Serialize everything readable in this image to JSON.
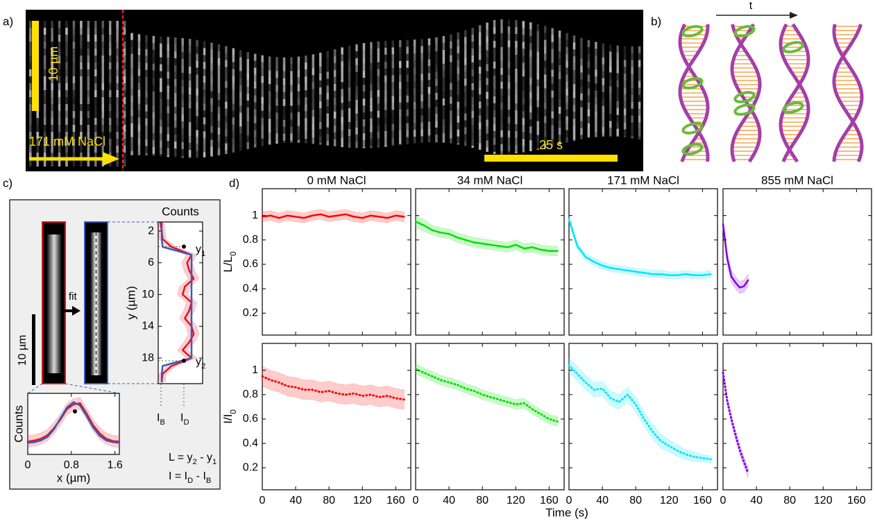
{
  "panel_labels": [
    "a)",
    "b)",
    "c)",
    "d)"
  ],
  "panel_a": {
    "scale_length": "10 µm",
    "condition": "171 mM NaCl",
    "scale_time": "25 s"
  },
  "panel_b": {
    "time_arrow": "t"
  },
  "panel_c": {
    "fit": "fit",
    "scale_length": "10 µm",
    "y1": [
      "y",
      "1"
    ],
    "y2": [
      "y",
      "2"
    ],
    "i_b": [
      "I",
      "B"
    ],
    "i_d": [
      "I",
      "D"
    ],
    "eq_l": [
      "L = y",
      "2",
      " - y",
      "1"
    ],
    "eq_i": [
      "I = I",
      "D",
      " - I",
      "B"
    ]
  },
  "panel_d": {
    "xlabel": "Time (s)"
  },
  "chart_data": [
    {
      "type": "line",
      "title": "0 mM NaCl",
      "ylabel": [
        "L/L",
        "0"
      ],
      "x": [
        0,
        10,
        20,
        30,
        40,
        50,
        60,
        70,
        80,
        90,
        100,
        110,
        120,
        130,
        140,
        150,
        160,
        170
      ],
      "xlim": [
        0,
        178
      ],
      "ylim": [
        0.02,
        1.22
      ],
      "xticks": [
        0,
        40,
        80,
        120,
        160
      ],
      "yticks": [
        0.2,
        0.4,
        0.6,
        0.8,
        1
      ],
      "xtick_labels": false,
      "ytick_labels": true,
      "series": [
        {
          "color": "#ff0000",
          "style": "solid",
          "values": [
            0.99,
            1.0,
            0.98,
            1.0,
            0.99,
            0.98,
            1.0,
            1.01,
            0.99,
            1.0,
            1.01,
            0.99,
            0.98,
            1.0,
            0.99,
            0.98,
            1.0,
            0.99
          ],
          "errors": [
            0.04,
            0.04,
            0.04,
            0.04,
            0.04,
            0.04,
            0.04,
            0.04,
            0.04,
            0.04,
            0.04,
            0.04,
            0.04,
            0.04,
            0.04,
            0.04,
            0.04,
            0.04
          ]
        }
      ]
    },
    {
      "type": "line",
      "title": "34 mM NaCl",
      "x": [
        0,
        10,
        20,
        30,
        40,
        50,
        60,
        70,
        80,
        90,
        100,
        110,
        120,
        130,
        140,
        150,
        160,
        170
      ],
      "xlim": [
        0,
        178
      ],
      "ylim": [
        0.02,
        1.22
      ],
      "xticks": [
        0,
        40,
        80,
        120,
        160
      ],
      "yticks": [
        0.2,
        0.4,
        0.6,
        0.8,
        1
      ],
      "xtick_labels": false,
      "ytick_labels": false,
      "series": [
        {
          "color": "#00e000",
          "style": "solid",
          "values": [
            0.95,
            0.92,
            0.88,
            0.86,
            0.85,
            0.82,
            0.8,
            0.78,
            0.77,
            0.76,
            0.75,
            0.74,
            0.76,
            0.73,
            0.74,
            0.72,
            0.71,
            0.71
          ],
          "errors": [
            0.05,
            0.05,
            0.04,
            0.04,
            0.04,
            0.04,
            0.04,
            0.04,
            0.04,
            0.04,
            0.04,
            0.04,
            0.04,
            0.04,
            0.04,
            0.04,
            0.04,
            0.04
          ]
        }
      ]
    },
    {
      "type": "line",
      "title": "171 mM NaCl",
      "x": [
        0,
        10,
        20,
        30,
        40,
        50,
        60,
        70,
        80,
        90,
        100,
        110,
        120,
        130,
        140,
        150,
        160,
        170
      ],
      "xlim": [
        0,
        178
      ],
      "ylim": [
        0.02,
        1.22
      ],
      "xticks": [
        0,
        40,
        80,
        120,
        160
      ],
      "yticks": [
        0.2,
        0.4,
        0.6,
        0.8,
        1
      ],
      "xtick_labels": false,
      "ytick_labels": false,
      "series": [
        {
          "color": "#00e5ff",
          "style": "solid",
          "values": [
            0.97,
            0.75,
            0.66,
            0.62,
            0.59,
            0.57,
            0.56,
            0.55,
            0.54,
            0.53,
            0.52,
            0.52,
            0.51,
            0.51,
            0.52,
            0.51,
            0.51,
            0.52
          ],
          "errors": [
            0.03,
            0.03,
            0.03,
            0.03,
            0.03,
            0.03,
            0.03,
            0.03,
            0.03,
            0.03,
            0.03,
            0.03,
            0.03,
            0.03,
            0.03,
            0.03,
            0.03,
            0.03
          ]
        }
      ]
    },
    {
      "type": "line",
      "title": "855 mM NaCl",
      "x": [
        0,
        5,
        10,
        15,
        20,
        25,
        30
      ],
      "xlim": [
        0,
        178
      ],
      "ylim": [
        0.02,
        1.22
      ],
      "xticks": [
        0,
        40,
        80,
        120,
        160
      ],
      "yticks": [
        0.2,
        0.4,
        0.6,
        0.8,
        1
      ],
      "xtick_labels": false,
      "ytick_labels": false,
      "series": [
        {
          "color": "#8000e0",
          "style": "solid",
          "values": [
            0.93,
            0.65,
            0.5,
            0.45,
            0.41,
            0.42,
            0.47
          ],
          "errors": [
            0.05,
            0.05,
            0.05,
            0.05,
            0.05,
            0.05,
            0.05
          ]
        }
      ]
    },
    {
      "type": "line",
      "ylabel": [
        "I/I",
        "0"
      ],
      "x": [
        0,
        10,
        20,
        30,
        40,
        50,
        60,
        70,
        80,
        90,
        100,
        110,
        120,
        130,
        140,
        150,
        160,
        170
      ],
      "xlim": [
        0,
        178
      ],
      "ylim": [
        0.02,
        1.22
      ],
      "xticks": [
        0,
        40,
        80,
        120,
        160
      ],
      "yticks": [
        0.2,
        0.4,
        0.6,
        0.8,
        1
      ],
      "xtick_labels": true,
      "ytick_labels": true,
      "series": [
        {
          "color": "#ff0000",
          "style": "dotted",
          "values": [
            0.95,
            0.92,
            0.9,
            0.87,
            0.86,
            0.84,
            0.84,
            0.82,
            0.83,
            0.81,
            0.8,
            0.81,
            0.79,
            0.8,
            0.78,
            0.79,
            0.77,
            0.76
          ],
          "errors": [
            0.08,
            0.08,
            0.08,
            0.08,
            0.08,
            0.08,
            0.08,
            0.08,
            0.08,
            0.08,
            0.08,
            0.08,
            0.08,
            0.08,
            0.08,
            0.08,
            0.08,
            0.08
          ]
        }
      ]
    },
    {
      "type": "line",
      "x": [
        0,
        10,
        20,
        30,
        40,
        50,
        60,
        70,
        80,
        90,
        100,
        110,
        120,
        130,
        140,
        150,
        160,
        170
      ],
      "xlim": [
        0,
        178
      ],
      "ylim": [
        0.02,
        1.22
      ],
      "xticks": [
        0,
        40,
        80,
        120,
        160
      ],
      "yticks": [
        0.2,
        0.4,
        0.6,
        0.8,
        1
      ],
      "xtick_labels": true,
      "ytick_labels": false,
      "series": [
        {
          "color": "#00e000",
          "style": "dotted",
          "values": [
            1.01,
            0.98,
            0.95,
            0.92,
            0.9,
            0.88,
            0.85,
            0.83,
            0.8,
            0.78,
            0.76,
            0.74,
            0.72,
            0.73,
            0.68,
            0.64,
            0.6,
            0.58
          ],
          "errors": [
            0.04,
            0.04,
            0.04,
            0.04,
            0.04,
            0.04,
            0.04,
            0.04,
            0.04,
            0.04,
            0.04,
            0.04,
            0.04,
            0.04,
            0.04,
            0.04,
            0.04,
            0.04
          ]
        }
      ]
    },
    {
      "type": "line",
      "x": [
        0,
        10,
        20,
        30,
        40,
        50,
        60,
        70,
        80,
        90,
        100,
        110,
        120,
        130,
        140,
        150,
        160,
        170
      ],
      "xlim": [
        0,
        178
      ],
      "ylim": [
        0.02,
        1.22
      ],
      "xticks": [
        0,
        40,
        80,
        120,
        160
      ],
      "yticks": [
        0.2,
        0.4,
        0.6,
        0.8,
        1
      ],
      "xtick_labels": true,
      "ytick_labels": false,
      "series": [
        {
          "color": "#00e5ff",
          "style": "dotted",
          "values": [
            1.04,
            0.97,
            0.9,
            0.84,
            0.85,
            0.77,
            0.74,
            0.8,
            0.72,
            0.6,
            0.5,
            0.42,
            0.38,
            0.34,
            0.31,
            0.29,
            0.28,
            0.27
          ],
          "errors": [
            0.06,
            0.06,
            0.06,
            0.06,
            0.06,
            0.06,
            0.06,
            0.06,
            0.06,
            0.06,
            0.06,
            0.06,
            0.05,
            0.05,
            0.04,
            0.04,
            0.03,
            0.03
          ]
        }
      ]
    },
    {
      "type": "line",
      "x": [
        0,
        5,
        10,
        15,
        20,
        25,
        30
      ],
      "xlim": [
        0,
        178
      ],
      "ylim": [
        0.02,
        1.22
      ],
      "xticks": [
        0,
        40,
        80,
        120,
        160
      ],
      "yticks": [
        0.2,
        0.4,
        0.6,
        0.8,
        1
      ],
      "xtick_labels": true,
      "ytick_labels": false,
      "series": [
        {
          "color": "#8000e0",
          "style": "dotted",
          "values": [
            0.98,
            0.75,
            0.6,
            0.47,
            0.35,
            0.25,
            0.16
          ],
          "errors": [
            0.04,
            0.04,
            0.04,
            0.04,
            0.04,
            0.04,
            0.04
          ]
        }
      ]
    },
    {
      "type": "line",
      "xlabel": "Counts",
      "ylabel": "y (µm)",
      "y": [
        1,
        2,
        3,
        4,
        5,
        6,
        7,
        8,
        9,
        10,
        11,
        12,
        13,
        14,
        15,
        16,
        17,
        18,
        19,
        20,
        21
      ],
      "xlim": [
        0,
        1
      ],
      "ylim": [
        21.23,
        0.86
      ],
      "yticks": [
        2,
        6,
        10,
        14,
        18
      ],
      "ytick_labels": true,
      "series": [
        {
          "color": "#e0141e",
          "style": "solid",
          "values": [
            0.05,
            0.08,
            0.1,
            0.3,
            0.75,
            0.65,
            0.7,
            0.8,
            0.6,
            0.55,
            0.75,
            0.7,
            0.6,
            0.75,
            0.8,
            0.7,
            0.55,
            0.75,
            0.3,
            0.1,
            0.08
          ],
          "errors": [
            0.08,
            0.08,
            0.08,
            0.1,
            0.12,
            0.12,
            0.12,
            0.12,
            0.12,
            0.12,
            0.12,
            0.12,
            0.12,
            0.12,
            0.12,
            0.12,
            0.12,
            0.12,
            0.1,
            0.08,
            0.08
          ]
        },
        {
          "color": "#3a5bbf",
          "style": "solid",
          "values": [
            0.08,
            0.08,
            0.08,
            0.1,
            0.75,
            0.75,
            0.75,
            0.75,
            0.75,
            0.75,
            0.75,
            0.75,
            0.75,
            0.75,
            0.75,
            0.75,
            0.75,
            0.75,
            0.1,
            0.08,
            0.08
          ]
        }
      ]
    },
    {
      "type": "line",
      "xlabel": "x (µm)",
      "ylabel": "Counts",
      "x": [
        0,
        0.12,
        0.24,
        0.36,
        0.48,
        0.6,
        0.72,
        0.84,
        0.96,
        1.08,
        1.2,
        1.32,
        1.44,
        1.56,
        1.68
      ],
      "xlim": [
        0,
        1.68
      ],
      "ylim": [
        0,
        1.05
      ],
      "xticks": [
        0,
        0.8,
        1.6
      ],
      "xtick_labels": true,
      "series": [
        {
          "color": "#e0141e",
          "style": "solid",
          "values": [
            0.22,
            0.24,
            0.27,
            0.33,
            0.45,
            0.6,
            0.78,
            0.86,
            0.88,
            0.7,
            0.5,
            0.36,
            0.27,
            0.23,
            0.22
          ],
          "errors": [
            0.1,
            0.1,
            0.1,
            0.1,
            0.1,
            0.1,
            0.1,
            0.1,
            0.1,
            0.1,
            0.1,
            0.1,
            0.1,
            0.1,
            0.1
          ]
        },
        {
          "color": "#3a5bbf",
          "style": "solid",
          "values": [
            0.2,
            0.21,
            0.24,
            0.3,
            0.43,
            0.62,
            0.81,
            0.9,
            0.84,
            0.66,
            0.46,
            0.32,
            0.24,
            0.21,
            0.2
          ]
        }
      ]
    }
  ]
}
